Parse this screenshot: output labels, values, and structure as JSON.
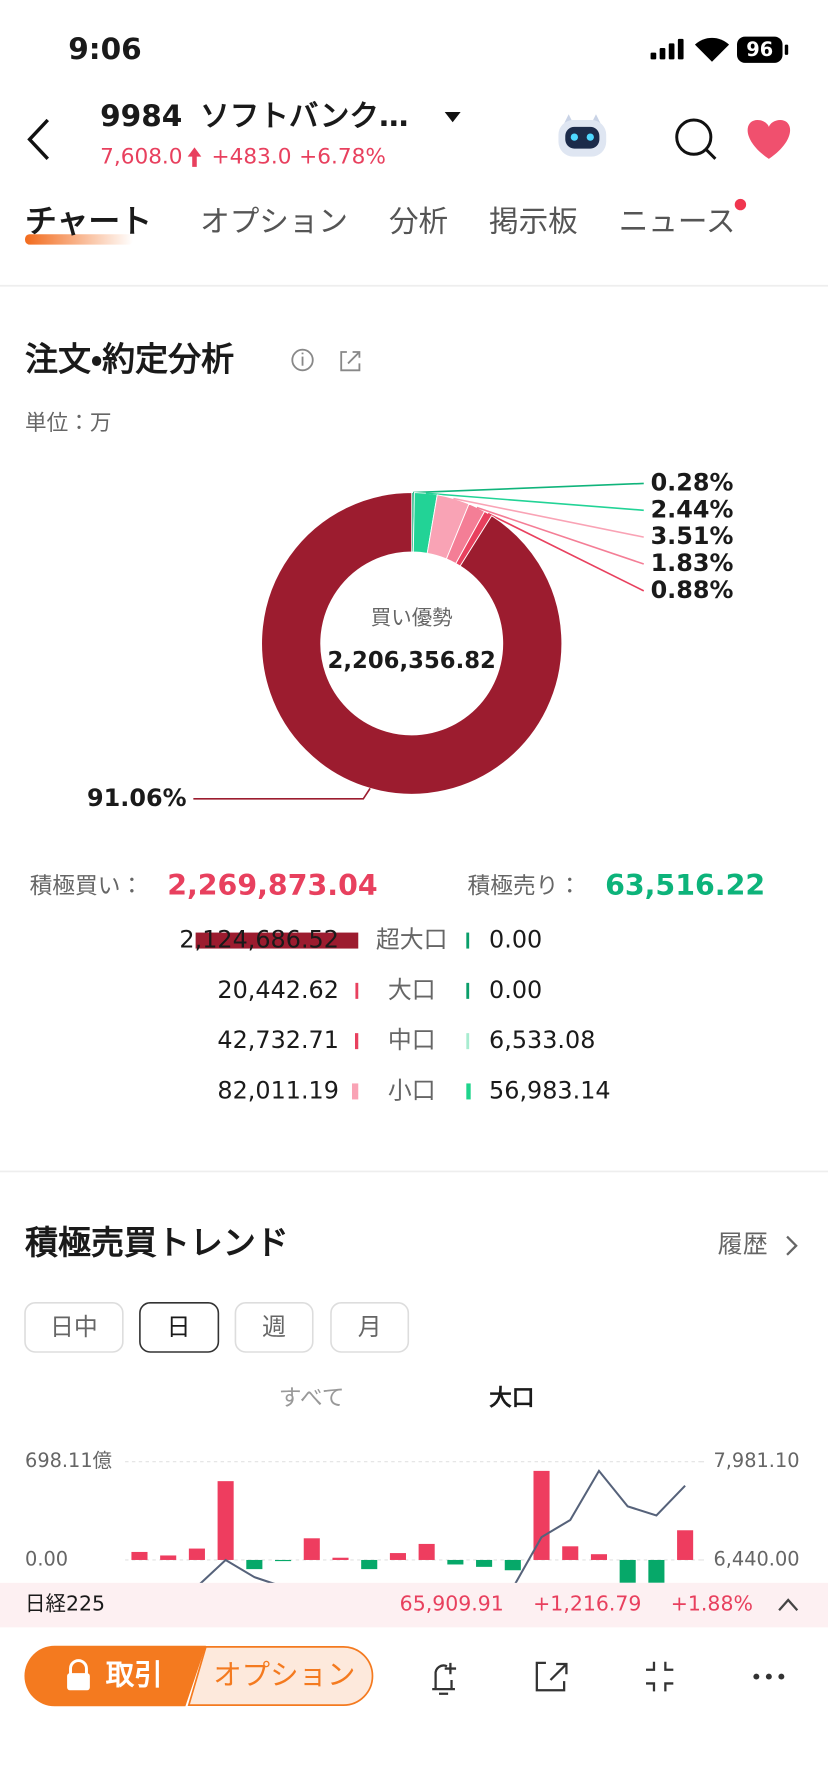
{
  "status_bar": {
    "time": "9:06",
    "battery": "96"
  },
  "header": {
    "code": "9984",
    "name": "ソフトバンク…",
    "price": "7,608.0",
    "change": "+483.0",
    "change_percent": "+6.78%"
  },
  "tabs": [
    "チャート",
    "オプション",
    "分析",
    "掲示板",
    "ニュース"
  ],
  "order_analysis": {
    "title": "注文・約定分析",
    "unit": "単位：万",
    "buy_label": "積極買い：",
    "buy_total": "2,269,873.04",
    "sell_label": "積極売り：",
    "sell_total": "63,516.22"
  },
  "chart_data": [
    {
      "type": "pie",
      "center_label": "買い優勢",
      "center_value": "2,206,356.82",
      "values": [
        0.28,
        2.44,
        3.51,
        1.83,
        0.88,
        91.06
      ],
      "value_labels": [
        "0.28%",
        "2.44%",
        "3.51%",
        "1.83%",
        "0.88%",
        "91.06%"
      ],
      "colors": [
        "#10b47b",
        "#22d396",
        "#f9a3b5",
        "#f47e96",
        "#e8405e",
        "#9c1c2f"
      ]
    },
    {
      "type": "bar",
      "orientation": "horizontal",
      "categories": [
        "超大口",
        "大口",
        "中口",
        "小口"
      ],
      "series": [
        {
          "colors": [
            "#9c1c2f",
            "#e8405e",
            "#e8405e",
            "#f9a3b5"
          ],
          "values": [
            2124686.52,
            20442.62,
            42732.71,
            82011.19
          ],
          "value_labels": [
            "2,124,686.52",
            "20,442.62",
            "42,732.71",
            "82,011.19"
          ]
        },
        {
          "colors": [
            "#0a9e6a",
            "#0a9e6a",
            "#a8ecd0",
            "#1ed48c"
          ],
          "values": [
            0,
            0,
            6533.08,
            56983.14
          ],
          "value_labels": [
            "0.00",
            "0.00",
            "6,533.08",
            "56,983.14"
          ]
        }
      ]
    },
    {
      "type": "bar",
      "series": [
        {
          "type": "bar",
          "positive_color": "#ee3d5f",
          "negative_color": "#06a869",
          "values": [
            57,
            32,
            81,
            560,
            -65,
            -8,
            154,
            16,
            -65,
            49,
            114,
            -32,
            -49,
            -73,
            633,
            97,
            41,
            -162,
            -162,
            211
          ]
        },
        {
          "type": "line",
          "axis": "y2",
          "color": "#56627a",
          "values": [
            null,
            null,
            6020,
            6440,
            6171,
            6020,
            null,
            null,
            null,
            null,
            null,
            null,
            null,
            6000,
            6798,
            7067,
            7837,
            7281,
            7138,
            7605
          ]
        }
      ],
      "ylim": [
        -200,
        698.11
      ],
      "yticks": [
        {
          "value": 698.11,
          "label": "698.11億"
        },
        {
          "value": 0,
          "label": "0.00"
        }
      ],
      "y2lim": [
        5998.5,
        7981.1
      ],
      "y2ticks": [
        {
          "value": 7981.1,
          "label": "7,981.10"
        },
        {
          "value": 6440,
          "label": "6,440.00"
        }
      ],
      "grid": true
    }
  ],
  "trend_section": {
    "title": "積極売買トレンド",
    "history": "履歴",
    "periods": [
      "日中",
      "日",
      "週",
      "月"
    ],
    "filters": [
      "すべて",
      "大口"
    ]
  },
  "ticker": {
    "name": "日経225",
    "price": "65,909.91",
    "change": "+1,216.79",
    "change_percent": "+1.88%"
  },
  "bottom_bar": {
    "trade": "取引",
    "option": "オプション"
  }
}
